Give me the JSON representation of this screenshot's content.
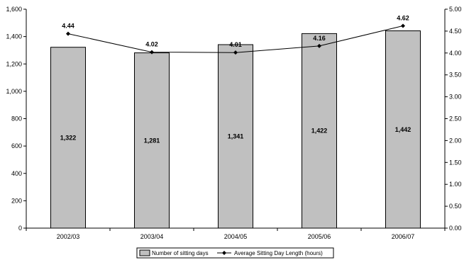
{
  "chart_data": {
    "type": "bar",
    "categories": [
      "2002/03",
      "2003/04",
      "2004/05",
      "2005/06",
      "2006/07"
    ],
    "series": [
      {
        "name": "Number of sitting days",
        "type": "bar",
        "axis": "left",
        "values": [
          1322,
          1281,
          1341,
          1422,
          1442
        ],
        "labels": [
          "1,322",
          "1,281",
          "1,341",
          "1,422",
          "1,442"
        ],
        "color": "#c0c0c0"
      },
      {
        "name": "Average Sitting Day Length (hours)",
        "type": "line",
        "axis": "right",
        "values": [
          4.44,
          4.02,
          4.01,
          4.16,
          4.62
        ],
        "labels": [
          "4.44",
          "4.02",
          "4.01",
          "4.16",
          "4.62"
        ],
        "color": "#000000"
      }
    ],
    "y_left": {
      "range": [
        0,
        1600
      ],
      "ticks": [
        0,
        200,
        400,
        600,
        800,
        1000,
        1200,
        1400,
        1600
      ],
      "tick_labels": [
        "0",
        "200",
        "400",
        "600",
        "800",
        "1,000",
        "1,200",
        "1,400",
        "1,600"
      ]
    },
    "y_right": {
      "range": [
        0,
        5
      ],
      "ticks": [
        0,
        0.5,
        1,
        1.5,
        2,
        2.5,
        3,
        3.5,
        4,
        4.5,
        5
      ],
      "tick_labels": [
        "0.00",
        "0.50",
        "1.00",
        "1.50",
        "2.00",
        "2.50",
        "3.00",
        "3.50",
        "4.00",
        "4.50",
        "5.00"
      ]
    },
    "grid": false,
    "legend_position": "bottom-center"
  }
}
